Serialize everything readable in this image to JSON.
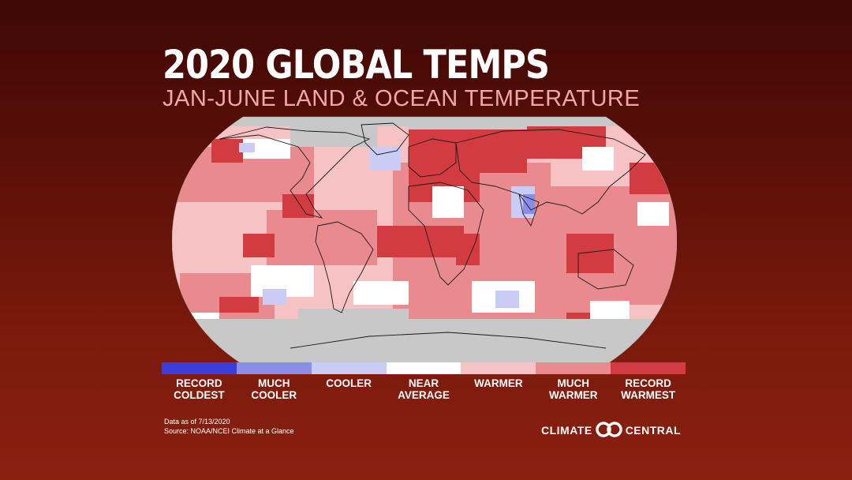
{
  "title": "2020 GLOBAL TEMPS",
  "subtitle": "JAN-JUNE LAND & OCEAN TEMPERATURE",
  "legend": [
    {
      "label": "RECORD\nCOLDEST",
      "color": "#3b3fd9"
    },
    {
      "label": "MUCH\nCOOLER",
      "color": "#8b8ee8"
    },
    {
      "label": "COOLER",
      "color": "#c9ccf4"
    },
    {
      "label": "NEAR\nAVERAGE",
      "color": "#ffffff"
    },
    {
      "label": "WARMER",
      "color": "#f6c2c3"
    },
    {
      "label": "MUCH\nWARMER",
      "color": "#e98b8e"
    },
    {
      "label": "RECORD\nWARMEST",
      "color": "#d23b40"
    }
  ],
  "footer": {
    "data_as_of": "Data as of 7/13/2020",
    "source": "Source: NOAA/NCEI Climate at a Glance"
  },
  "logo": {
    "left_word": "CLIMATE",
    "right_word": "CENTRAL"
  },
  "colors": {
    "no_data": "#c8c8c8",
    "warmer": "#f6c2c3",
    "much_warmer": "#e98b8e",
    "record_warmest": "#d23b40",
    "near_average": "#ffffff",
    "cooler": "#c9ccf4",
    "much_cooler": "#8b8ee8"
  }
}
